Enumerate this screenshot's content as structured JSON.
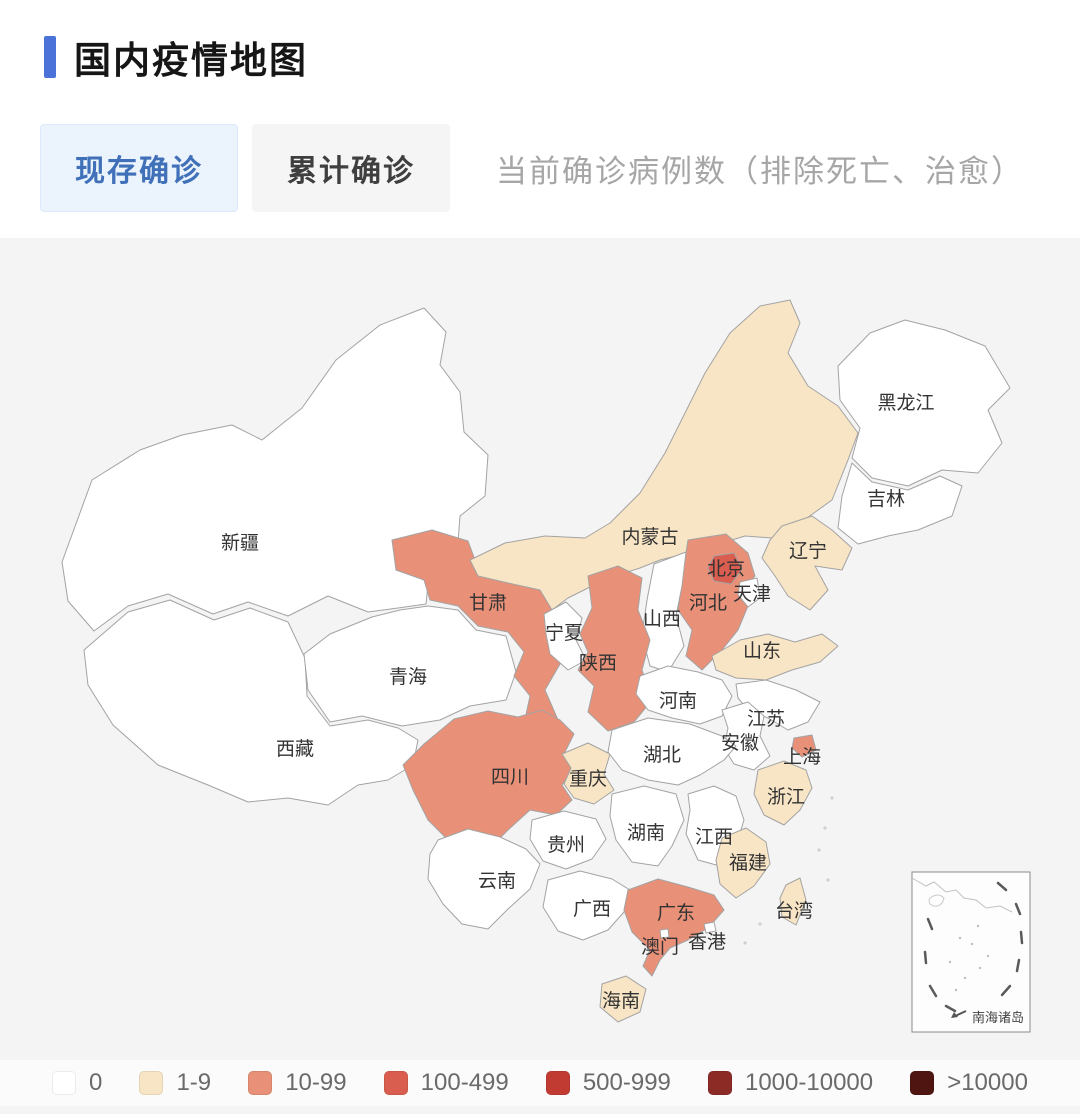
{
  "header": {
    "title": "国内疫情地图"
  },
  "tabs": [
    {
      "label": "现存确诊",
      "active": true
    },
    {
      "label": "累计确诊",
      "active": false
    }
  ],
  "description": "当前确诊病例数（排除死亡、治愈）",
  "legend": {
    "categories": [
      {
        "label": "0",
        "color": "#ffffff"
      },
      {
        "label": "1-9",
        "color": "#f8e5c5"
      },
      {
        "label": "10-99",
        "color": "#e89078"
      },
      {
        "label": "100-499",
        "color": "#d95e50"
      },
      {
        "label": "500-999",
        "color": "#c23b33"
      },
      {
        "label": "1000-10000",
        "color": "#8c2b26"
      },
      {
        "label": ">10000",
        "color": "#4f1511"
      }
    ]
  },
  "map": {
    "inset_label": "南海诸岛",
    "provinces": [
      {
        "id": "xinjiang",
        "name": "新疆",
        "category": "0"
      },
      {
        "id": "xizang",
        "name": "西藏",
        "category": "0"
      },
      {
        "id": "qinghai",
        "name": "青海",
        "category": "0"
      },
      {
        "id": "gansu",
        "name": "甘肃",
        "category": "10-99"
      },
      {
        "id": "neimenggu",
        "name": "内蒙古",
        "category": "1-9"
      },
      {
        "id": "heilongjiang",
        "name": "黑龙江",
        "category": "0"
      },
      {
        "id": "jilin",
        "name": "吉林",
        "category": "0"
      },
      {
        "id": "liaoning",
        "name": "辽宁",
        "category": "1-9"
      },
      {
        "id": "hebei",
        "name": "河北",
        "category": "10-99"
      },
      {
        "id": "beijing",
        "name": "北京",
        "category": "100-499"
      },
      {
        "id": "tianjin",
        "name": "天津",
        "category": "0"
      },
      {
        "id": "shanxi",
        "name": "山西",
        "category": "0"
      },
      {
        "id": "ningxia",
        "name": "宁夏",
        "category": "0"
      },
      {
        "id": "shaanxi",
        "name": "陕西",
        "category": "10-99"
      },
      {
        "id": "shandong",
        "name": "山东",
        "category": "1-9"
      },
      {
        "id": "henan",
        "name": "河南",
        "category": "0"
      },
      {
        "id": "jiangsu",
        "name": "江苏",
        "category": "0"
      },
      {
        "id": "anhui",
        "name": "安徽",
        "category": "0"
      },
      {
        "id": "shanghai",
        "name": "上海",
        "category": "10-99"
      },
      {
        "id": "sichuan",
        "name": "四川",
        "category": "10-99"
      },
      {
        "id": "chongqing",
        "name": "重庆",
        "category": "1-9"
      },
      {
        "id": "hubei",
        "name": "湖北",
        "category": "0"
      },
      {
        "id": "zhejiang",
        "name": "浙江",
        "category": "1-9"
      },
      {
        "id": "hunan",
        "name": "湖南",
        "category": "0"
      },
      {
        "id": "jiangxi",
        "name": "江西",
        "category": "0"
      },
      {
        "id": "guizhou",
        "name": "贵州",
        "category": "0"
      },
      {
        "id": "fujian",
        "name": "福建",
        "category": "1-9"
      },
      {
        "id": "yunnan",
        "name": "云南",
        "category": "0"
      },
      {
        "id": "guangxi",
        "name": "广西",
        "category": "0"
      },
      {
        "id": "guangdong",
        "name": "广东",
        "category": "10-99"
      },
      {
        "id": "aomen",
        "name": "澳门",
        "category": "0"
      },
      {
        "id": "xianggang",
        "name": "香港",
        "category": "0"
      },
      {
        "id": "taiwan",
        "name": "台湾",
        "category": "1-9"
      },
      {
        "id": "hainan",
        "name": "海南",
        "category": "1-9"
      }
    ]
  }
}
